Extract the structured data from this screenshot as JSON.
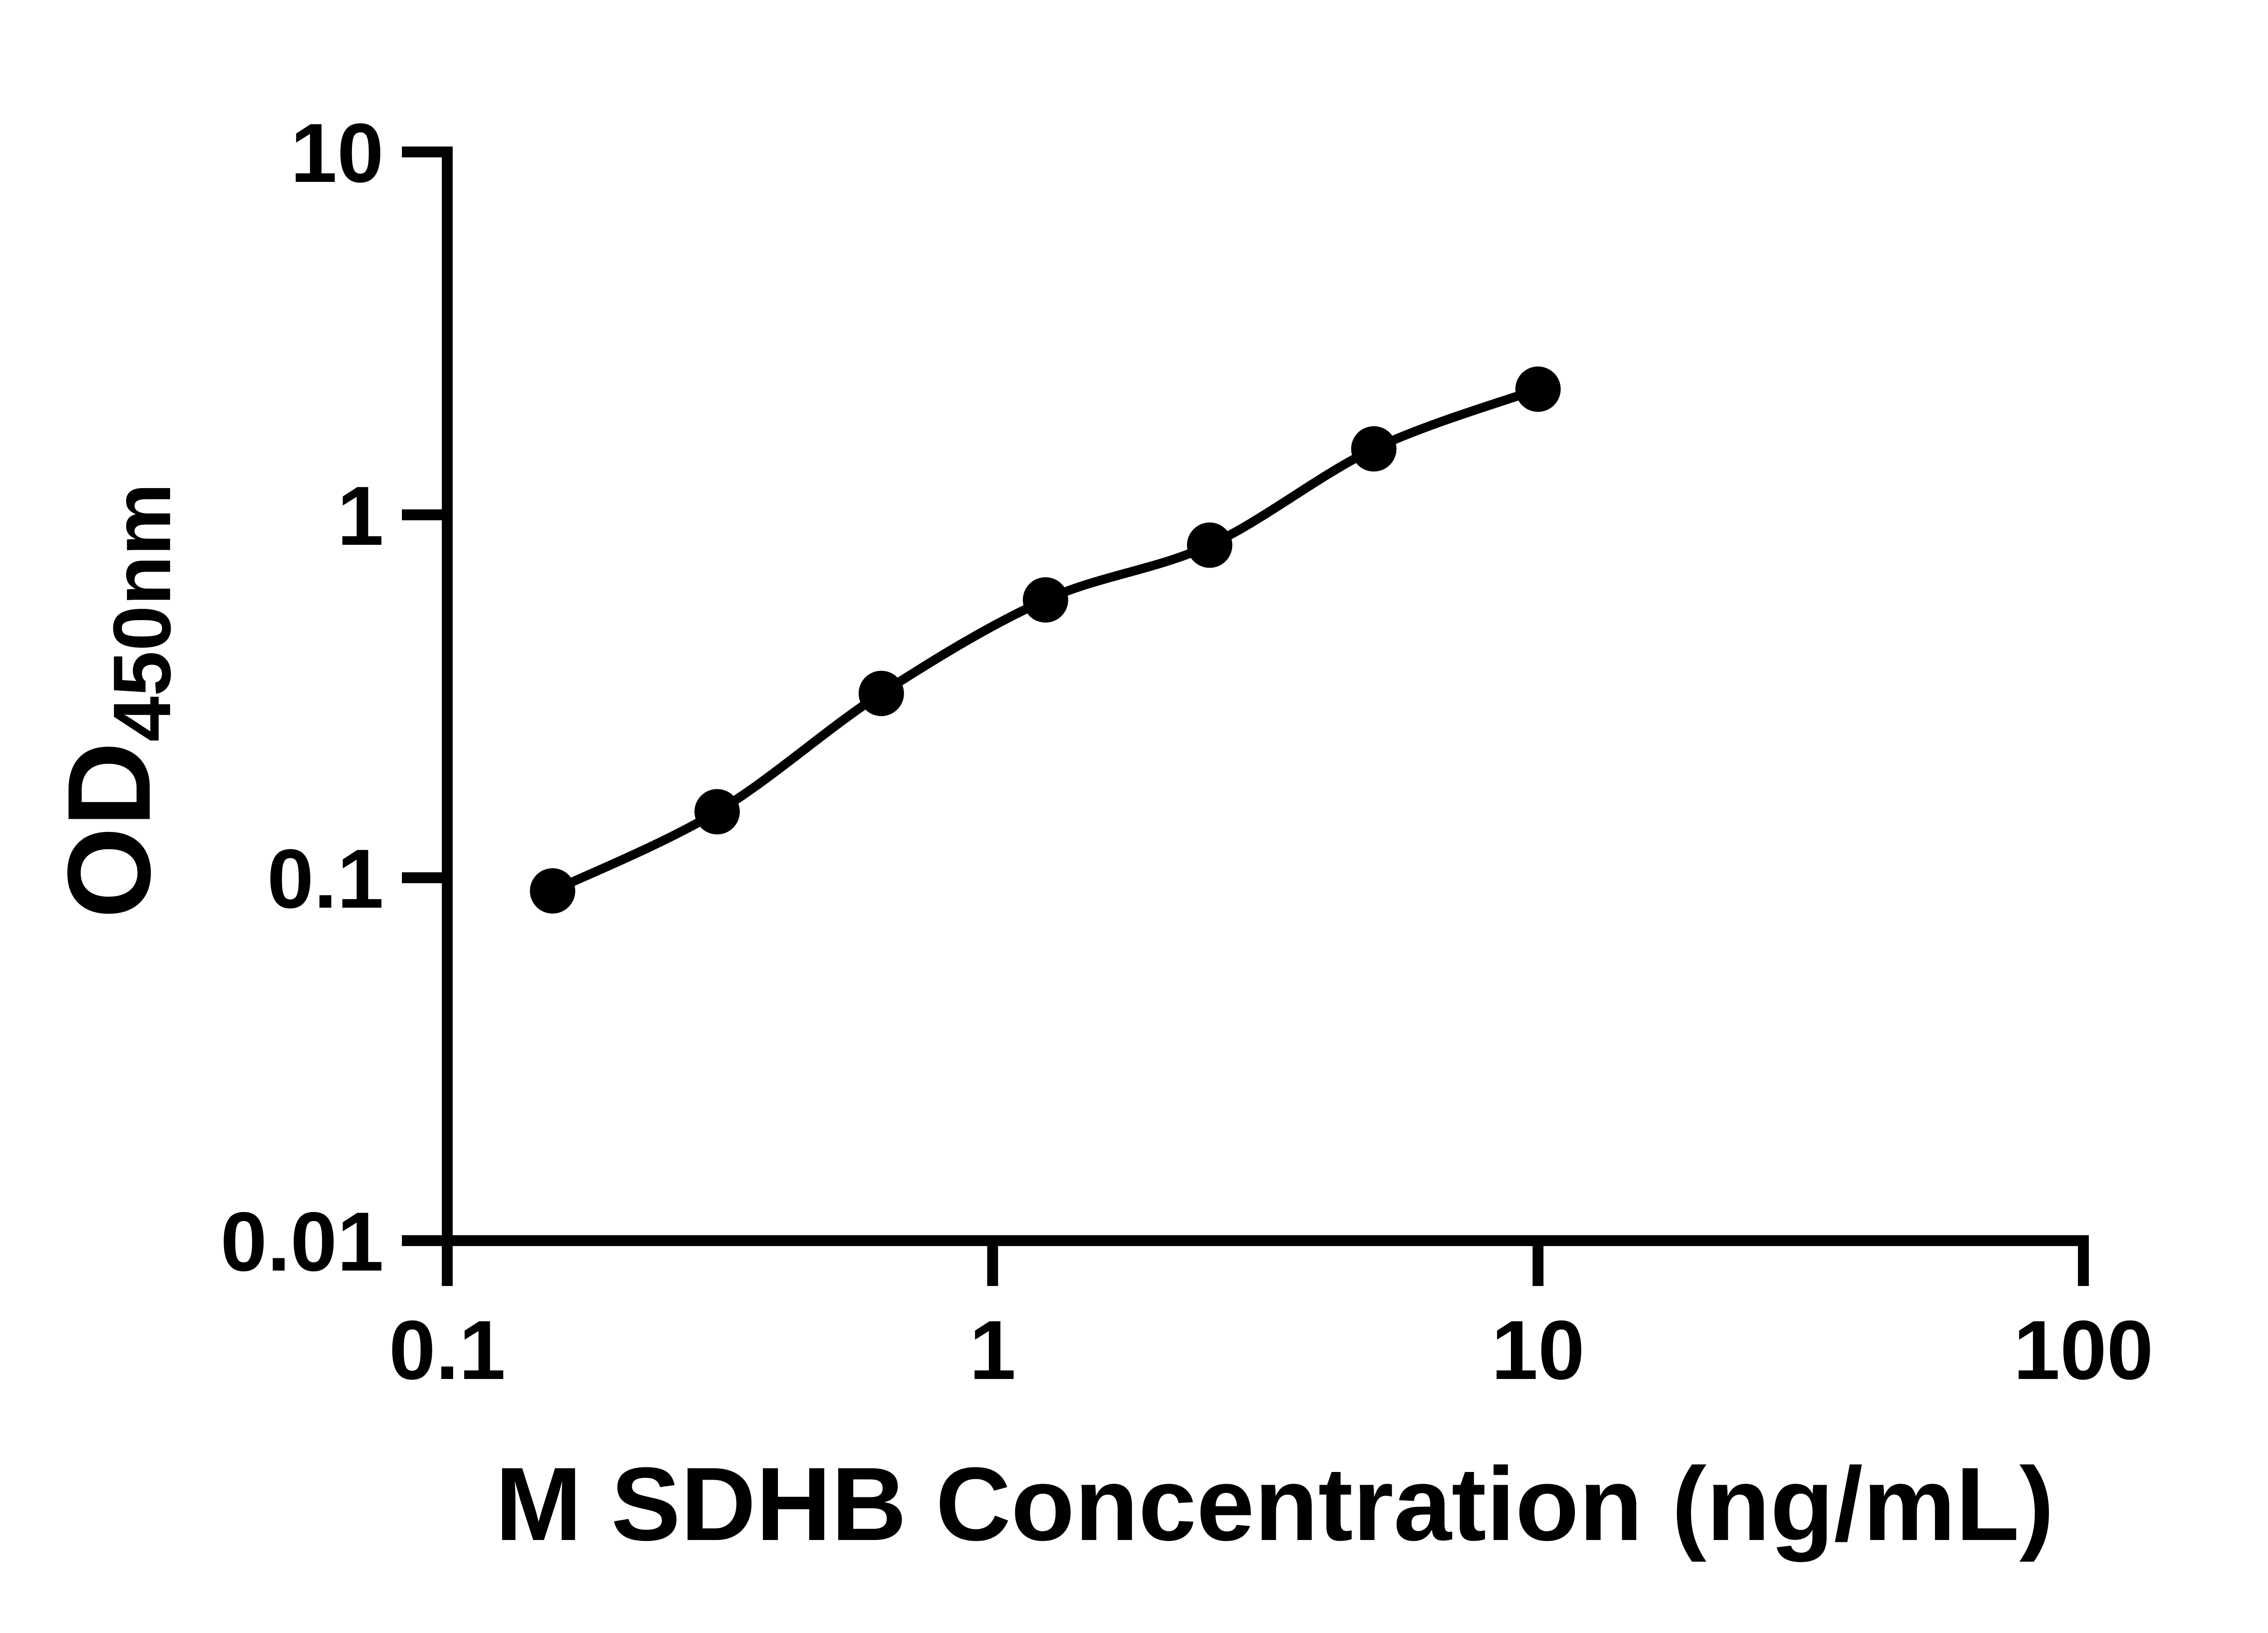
{
  "figure": {
    "background_color": "#ffffff",
    "foreground_color": "#000000"
  },
  "chart_data": {
    "type": "scatter",
    "curve_style": "smooth-fit-line",
    "title": "",
    "xlabel": "M SDHB Concentration (ng/mL)",
    "ylabel_main": "OD",
    "ylabel_sub": "450nm",
    "x_scale": "log",
    "y_scale": "log",
    "xlim": [
      0.1,
      100
    ],
    "ylim": [
      0.01,
      10
    ],
    "x_tick_values": [
      0.1,
      1,
      10,
      100
    ],
    "x_tick_labels": [
      "0.1",
      "1",
      "10",
      "100"
    ],
    "y_tick_values": [
      0.01,
      0.1,
      1,
      10
    ],
    "y_tick_labels": [
      "0.01",
      "0.1",
      "1",
      "10"
    ],
    "grid": false,
    "legend_position": "none",
    "marker_shape": "circle",
    "marker_color": "#000000",
    "line_color": "#000000",
    "points": [
      {
        "x": 0.156,
        "y": 0.092
      },
      {
        "x": 0.3125,
        "y": 0.152
      },
      {
        "x": 0.625,
        "y": 0.322
      },
      {
        "x": 1.25,
        "y": 0.583
      },
      {
        "x": 2.5,
        "y": 0.825
      },
      {
        "x": 5,
        "y": 1.52
      },
      {
        "x": 10,
        "y": 2.22
      }
    ]
  }
}
